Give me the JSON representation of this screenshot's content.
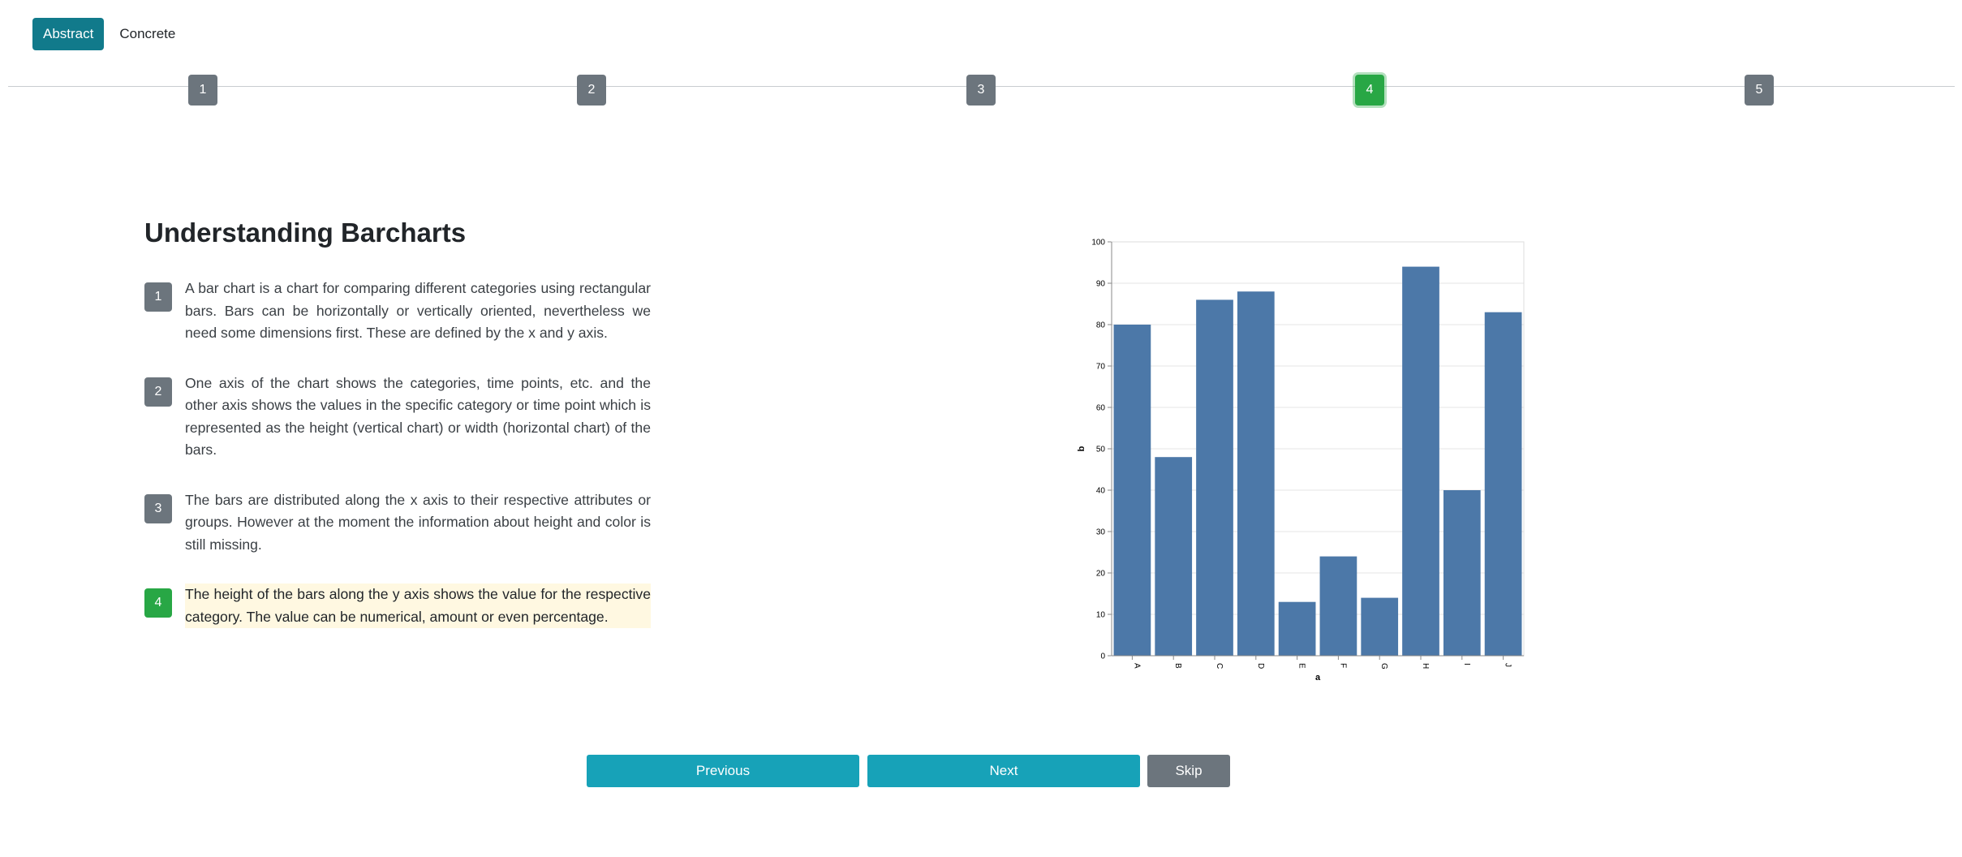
{
  "mode_tabs": [
    {
      "label": "Abstract",
      "active": true
    },
    {
      "label": "Concrete",
      "active": false
    }
  ],
  "stepper": {
    "steps": [
      "1",
      "2",
      "3",
      "4",
      "5"
    ],
    "active_step": "4"
  },
  "content": {
    "title": "Understanding Barcharts",
    "items": [
      {
        "num": "1",
        "text": "A bar chart is a chart for comparing different categories using rectangular bars. Bars can be horizontally or vertically oriented, nevertheless we need some dimensions first. These are defined by the x and y axis."
      },
      {
        "num": "2",
        "text": "One axis of the chart shows the categories, time points, etc. and the other axis shows the values in the specific category or time point which is represented as the height (vertical chart) or width (horizontal chart) of the bars."
      },
      {
        "num": "3",
        "text": "The bars are distributed along the x axis to their respective attributes or groups. However at the moment the information about height and color is still missing."
      },
      {
        "num": "4",
        "text": " The height of the bars along the y axis shows the value for the respective category. The value can be numerical, amount or even percentage.",
        "highlighted": true
      }
    ]
  },
  "chart_data": {
    "type": "bar",
    "categories": [
      "A",
      "B",
      "C",
      "D",
      "E",
      "F",
      "G",
      "H",
      "I",
      "J"
    ],
    "values": [
      80,
      48,
      86,
      88,
      13,
      24,
      14,
      94,
      40,
      83
    ],
    "xlabel": "a",
    "ylabel": "b",
    "ylim": [
      0,
      100
    ],
    "yticks": [
      0,
      10,
      20,
      30,
      40,
      50,
      60,
      70,
      80,
      90,
      100
    ],
    "grid": true,
    "bar_color": "#4c78a8"
  },
  "buttons": {
    "previous": "Previous",
    "next": "Next",
    "skip": "Skip"
  },
  "colors": {
    "active_tab": "#117a8b",
    "active_step": "#28a745",
    "step": "#6c757d",
    "button_primary": "#17a2b8",
    "button_secondary": "#6c757d",
    "highlight": "#fff8e1"
  }
}
